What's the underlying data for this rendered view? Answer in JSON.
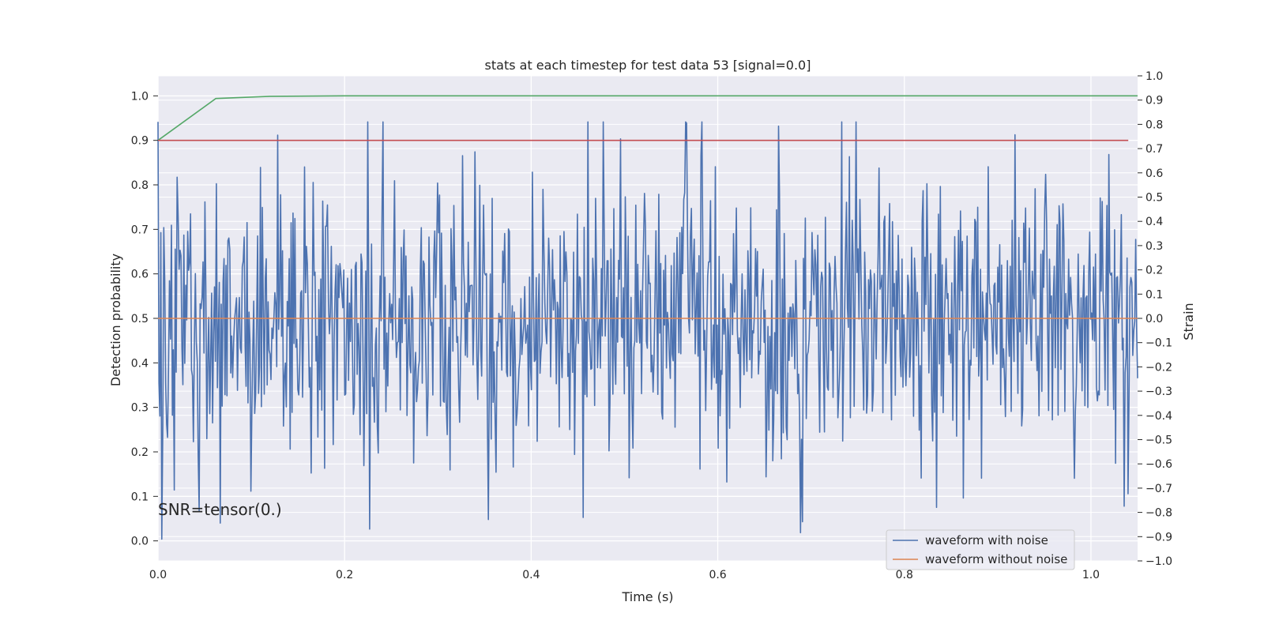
{
  "chart_data": {
    "type": "line",
    "title": "stats at each timestep for test data 53 [signal=0.0]",
    "xlabel": "Time (s)",
    "ylabel_left": "Detection probability",
    "ylabel_right": "Strain",
    "xlim": [
      0.0,
      1.05
    ],
    "ylim_left": [
      -0.045,
      1.045
    ],
    "ylim_right": [
      -1.0,
      1.0
    ],
    "x_ticks": [
      "0.0",
      "0.2",
      "0.4",
      "0.6",
      "0.8",
      "1.0"
    ],
    "x_tick_values": [
      0.0,
      0.2,
      0.4,
      0.6,
      0.8,
      1.0
    ],
    "y_left_ticks": [
      "0.0",
      "0.1",
      "0.2",
      "0.3",
      "0.4",
      "0.5",
      "0.6",
      "0.7",
      "0.8",
      "0.9",
      "1.0"
    ],
    "y_left_tick_values": [
      0.0,
      0.1,
      0.2,
      0.3,
      0.4,
      0.5,
      0.6,
      0.7,
      0.8,
      0.9,
      1.0
    ],
    "y_right_ticks": [
      "−1.0",
      "−0.9",
      "−0.8",
      "−0.7",
      "−0.6",
      "−0.5",
      "−0.4",
      "−0.3",
      "−0.2",
      "−0.1",
      "0.0",
      "0.1",
      "0.2",
      "0.3",
      "0.4",
      "0.5",
      "0.6",
      "0.7",
      "0.8",
      "0.9",
      "1.0"
    ],
    "y_right_tick_values": [
      -1.0,
      -0.9,
      -0.8,
      -0.7,
      -0.6,
      -0.5,
      -0.4,
      -0.3,
      -0.2,
      -0.1,
      0.0,
      0.1,
      0.2,
      0.3,
      0.4,
      0.5,
      0.6,
      0.7,
      0.8,
      0.9,
      1.0
    ],
    "grid": true,
    "annotation": "SNR=tensor(0.)",
    "legend_position": "lower-right",
    "series": [
      {
        "name": "waveform with noise",
        "axis": "right",
        "color": "#4c72b0",
        "kind": "noise",
        "x_range": [
          0.0,
          1.05
        ],
        "n_points": 1024,
        "mean": 0.0,
        "min": -0.91,
        "max": 0.81,
        "std": 0.3
      },
      {
        "name": "waveform without noise",
        "axis": "right",
        "color": "#dd8452",
        "x": [
          0.0,
          1.05
        ],
        "y": [
          0.0,
          0.0
        ]
      },
      {
        "axis": "left",
        "color": "#55a868",
        "x": [
          0.0,
          0.062,
          0.12,
          0.2,
          0.4,
          0.6,
          0.8,
          1.0,
          1.05
        ],
        "y": [
          0.9,
          0.994,
          0.999,
          1.0,
          1.0,
          1.0,
          1.0,
          1.0,
          1.0
        ]
      },
      {
        "axis": "left",
        "color": "#c44e52",
        "x": [
          0.0,
          1.04
        ],
        "y": [
          0.9,
          0.9
        ]
      }
    ]
  }
}
